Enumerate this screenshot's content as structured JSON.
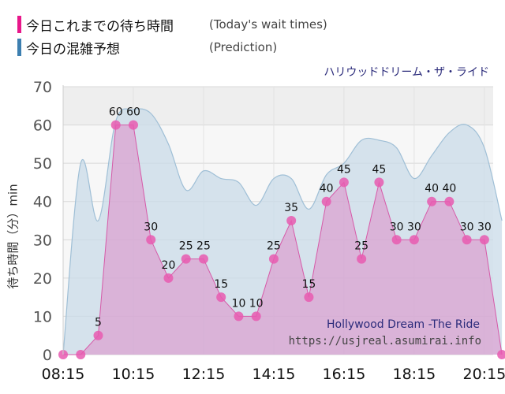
{
  "legend": {
    "today_jp": "今日これまでの待ち時間",
    "today_en": "(Today's wait times)",
    "pred_jp": "今日の混雑予想",
    "pred_en": "(Prediction)",
    "today_color": "#e8178a",
    "pred_color": "#3d7fb0"
  },
  "attraction_jp": "ハリウッドドリーム・ザ・ライド",
  "attraction_en": "Hollywood Dream -The Ride",
  "site_url": "https://usjreal.asumirai.info",
  "chart_data": {
    "type": "area",
    "title": "ハリウッドドリーム・ザ・ライド",
    "ylabel": "待ち時間（分）min",
    "xlabel": "",
    "ylim": [
      0,
      70
    ],
    "yticks": [
      0,
      10,
      20,
      30,
      40,
      50,
      60,
      70
    ],
    "xlim": [
      "08:15",
      "20:30"
    ],
    "xticks": [
      "08:15",
      "10:15",
      "12:15",
      "14:15",
      "16:15",
      "18:15",
      "20:15"
    ],
    "grid": true,
    "series": [
      {
        "name": "今日これまでの待ち時間",
        "color": "#e8178a",
        "labels_shown": true,
        "x": [
          "08:15",
          "08:45",
          "09:15",
          "09:45",
          "10:15",
          "10:45",
          "11:15",
          "11:45",
          "12:15",
          "12:45",
          "13:15",
          "13:45",
          "14:15",
          "14:45",
          "15:15",
          "15:45",
          "16:15",
          "16:45",
          "17:15",
          "17:45",
          "18:15",
          "18:45",
          "19:15",
          "19:45",
          "20:15",
          "20:45"
        ],
        "values": [
          0,
          0,
          5,
          60,
          60,
          30,
          20,
          25,
          25,
          15,
          10,
          10,
          25,
          35,
          15,
          40,
          45,
          25,
          45,
          30,
          30,
          40,
          40,
          30,
          30,
          0
        ]
      },
      {
        "name": "今日の混雑予想",
        "color": "#9fbfd6",
        "labels_shown": false,
        "x": [
          "08:15",
          "08:45",
          "09:15",
          "09:45",
          "10:15",
          "10:45",
          "11:15",
          "11:45",
          "12:15",
          "12:45",
          "13:15",
          "13:45",
          "14:15",
          "14:45",
          "15:15",
          "15:45",
          "16:15",
          "16:45",
          "17:15",
          "17:45",
          "18:15",
          "18:45",
          "19:15",
          "19:45",
          "20:15",
          "20:45"
        ],
        "values": [
          0,
          50,
          35,
          61,
          64,
          63,
          55,
          43,
          48,
          46,
          45,
          39,
          46,
          46,
          38,
          47,
          50,
          56,
          56,
          54,
          46,
          52,
          58,
          60,
          54,
          35
        ]
      }
    ]
  }
}
